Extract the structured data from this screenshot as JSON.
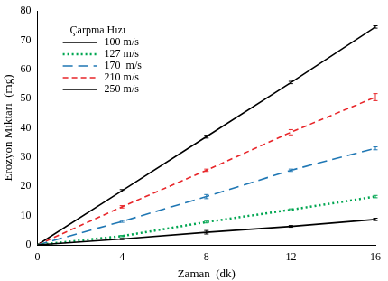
{
  "chart_data": {
    "type": "line",
    "x_label": "Zaman  (dk)",
    "y_label": "Erozyon Miktarı  (mg)",
    "legend_title": "Çarpma Hızı",
    "legend": "upper left",
    "grid": false,
    "x": [
      0,
      4,
      8,
      12,
      16
    ],
    "xlim": [
      0,
      16
    ],
    "xticks": [
      0,
      4,
      8,
      12,
      16
    ],
    "ylim": [
      0,
      80
    ],
    "yticks": [
      0,
      10,
      20,
      30,
      40,
      50,
      60,
      70,
      80
    ],
    "series": [
      {
        "name": "100 m/s",
        "color": "#000000",
        "line_style": "solid",
        "values": [
          0,
          2,
          4.3,
          6.3,
          8.7
        ],
        "errors": [
          0,
          0.2,
          0.6,
          0.3,
          0.4
        ]
      },
      {
        "name": "127 m/s",
        "color": "#00a651",
        "line_style": "dotted",
        "values": [
          0,
          3,
          7.8,
          12,
          16.5
        ],
        "errors": [
          0,
          0.2,
          0.3,
          0.3,
          0.4
        ]
      },
      {
        "name": "170  m/s",
        "color": "#1f77b4",
        "line_style": "dashed",
        "values": [
          0,
          8,
          16.5,
          25.5,
          33
        ],
        "errors": [
          0,
          0.3,
          0.7,
          0.4,
          0.5
        ]
      },
      {
        "name": "210 m/s",
        "color": "#e8262a",
        "line_style": "dashed",
        "values": [
          0,
          13,
          25.5,
          38.5,
          50.5
        ],
        "errors": [
          0,
          0.4,
          0.4,
          0.9,
          1.2
        ]
      },
      {
        "name": "250 m/s",
        "color": "#000000",
        "line_style": "solid",
        "values": [
          0,
          18.5,
          37,
          55.5,
          74.5
        ],
        "errors": [
          0,
          0.4,
          0.5,
          0.4,
          0.4
        ]
      }
    ]
  }
}
